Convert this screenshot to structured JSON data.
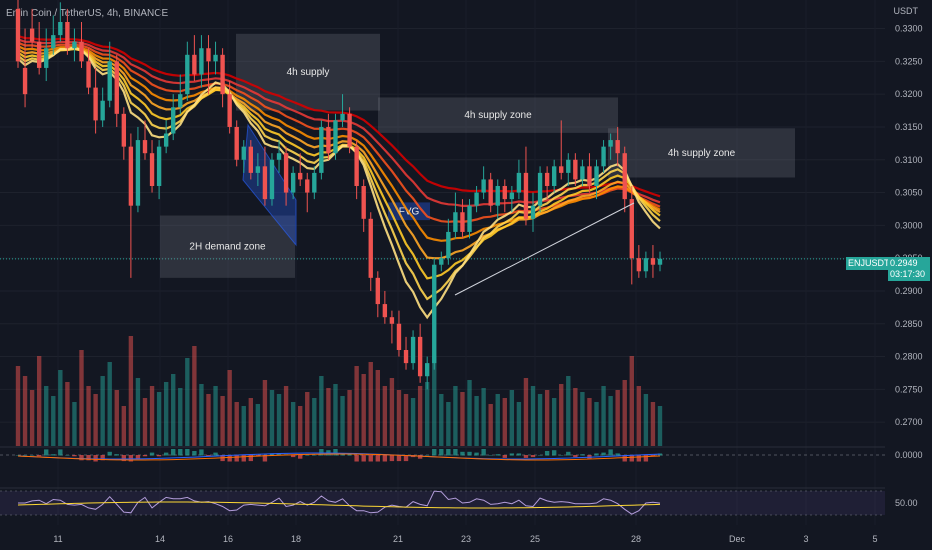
{
  "header": {
    "symbol_title": "Enjin Coin / TetherUS, 4h, BINANCE",
    "currency": "USDT"
  },
  "colors": {
    "background": "#131722",
    "up": "#26a69a",
    "down": "#ef5350",
    "zone": "#787b86",
    "fvg": "#2962ff",
    "ribbon": [
      "#d50000",
      "#e53935",
      "#f4511e",
      "#fb8c00",
      "#ffa726",
      "#ffca28",
      "#ffd54f",
      "#ffe082"
    ]
  },
  "price_tag": {
    "symbol": "ENJUSDT",
    "price": "0.2949",
    "countdown": "03:17:30"
  },
  "chart_data": {
    "type": "candlestick",
    "y_axis": {
      "ticks": [
        "0.3300",
        "0.3250",
        "0.3200",
        "0.3150",
        "0.3100",
        "0.3050",
        "0.3000",
        "0.2950",
        "0.2900",
        "0.2850",
        "0.2800",
        "0.2750",
        "0.2700"
      ],
      "range": [
        0.2685,
        0.331
      ]
    },
    "x_axis": {
      "ticks": [
        "11",
        "14",
        "16",
        "18",
        "21",
        "23",
        "25",
        "28",
        "Dec",
        "3",
        "5"
      ]
    },
    "candles": [
      [
        0.333,
        0.3345,
        0.325,
        0.324
      ],
      [
        0.324,
        0.33,
        0.32,
        0.318
      ],
      [
        0.33,
        0.333,
        0.328,
        0.327
      ],
      [
        0.328,
        0.331,
        0.324,
        0.323
      ],
      [
        0.324,
        0.33,
        0.327,
        0.322
      ],
      [
        0.327,
        0.332,
        0.329,
        0.326
      ],
      [
        0.329,
        0.334,
        0.331,
        0.328
      ],
      [
        0.331,
        0.333,
        0.327,
        0.326
      ],
      [
        0.327,
        0.33,
        0.328,
        0.325
      ],
      [
        0.328,
        0.331,
        0.325,
        0.324
      ],
      [
        0.325,
        0.327,
        0.321,
        0.32
      ],
      [
        0.321,
        0.324,
        0.316,
        0.314
      ],
      [
        0.316,
        0.321,
        0.319,
        0.315
      ],
      [
        0.319,
        0.328,
        0.325,
        0.318
      ],
      [
        0.325,
        0.326,
        0.317,
        0.315
      ],
      [
        0.317,
        0.318,
        0.312,
        0.31
      ],
      [
        0.312,
        0.314,
        0.303,
        0.292
      ],
      [
        0.303,
        0.315,
        0.313,
        0.302
      ],
      [
        0.313,
        0.316,
        0.311,
        0.31
      ],
      [
        0.311,
        0.313,
        0.306,
        0.305
      ],
      [
        0.306,
        0.313,
        0.312,
        0.304
      ],
      [
        0.312,
        0.316,
        0.314,
        0.311
      ],
      [
        0.314,
        0.32,
        0.318,
        0.313
      ],
      [
        0.318,
        0.323,
        0.32,
        0.317
      ],
      [
        0.32,
        0.328,
        0.326,
        0.319
      ],
      [
        0.326,
        0.329,
        0.323,
        0.322
      ],
      [
        0.323,
        0.329,
        0.327,
        0.321
      ],
      [
        0.327,
        0.329,
        0.325,
        0.32
      ],
      [
        0.325,
        0.328,
        0.326,
        0.323
      ],
      [
        0.326,
        0.327,
        0.32,
        0.318
      ],
      [
        0.32,
        0.322,
        0.315,
        0.314
      ],
      [
        0.315,
        0.316,
        0.31,
        0.309
      ],
      [
        0.31,
        0.313,
        0.312,
        0.308
      ],
      [
        0.312,
        0.313,
        0.308,
        0.307
      ],
      [
        0.308,
        0.311,
        0.309,
        0.306
      ],
      [
        0.309,
        0.312,
        0.304,
        0.303
      ],
      [
        0.304,
        0.311,
        0.31,
        0.303
      ],
      [
        0.31,
        0.313,
        0.311,
        0.308
      ],
      [
        0.311,
        0.312,
        0.305,
        0.303
      ],
      [
        0.305,
        0.309,
        0.308,
        0.304
      ],
      [
        0.308,
        0.311,
        0.307,
        0.306
      ],
      [
        0.307,
        0.308,
        0.305,
        0.302
      ],
      [
        0.305,
        0.309,
        0.308,
        0.304
      ],
      [
        0.308,
        0.316,
        0.315,
        0.307
      ],
      [
        0.315,
        0.317,
        0.311,
        0.31
      ],
      [
        0.311,
        0.317,
        0.316,
        0.31
      ],
      [
        0.316,
        0.32,
        0.317,
        0.315
      ],
      [
        0.317,
        0.318,
        0.312,
        0.311
      ],
      [
        0.312,
        0.313,
        0.306,
        0.304
      ],
      [
        0.306,
        0.307,
        0.301,
        0.299
      ],
      [
        0.301,
        0.302,
        0.292,
        0.29
      ],
      [
        0.292,
        0.293,
        0.288,
        0.286
      ],
      [
        0.288,
        0.29,
        0.286,
        0.285
      ],
      [
        0.286,
        0.287,
        0.285,
        0.282
      ],
      [
        0.285,
        0.287,
        0.281,
        0.28
      ],
      [
        0.281,
        0.283,
        0.279,
        0.278
      ],
      [
        0.279,
        0.284,
        0.283,
        0.278
      ],
      [
        0.283,
        0.285,
        0.277,
        0.276
      ],
      [
        0.277,
        0.28,
        0.279,
        0.275
      ],
      [
        0.279,
        0.295,
        0.294,
        0.278
      ],
      [
        0.294,
        0.296,
        0.295,
        0.293
      ],
      [
        0.295,
        0.301,
        0.299,
        0.294
      ],
      [
        0.299,
        0.305,
        0.302,
        0.298
      ],
      [
        0.302,
        0.304,
        0.299,
        0.298
      ],
      [
        0.299,
        0.304,
        0.303,
        0.298
      ],
      [
        0.303,
        0.306,
        0.305,
        0.302
      ],
      [
        0.305,
        0.309,
        0.307,
        0.304
      ],
      [
        0.307,
        0.308,
        0.303,
        0.302
      ],
      [
        0.303,
        0.307,
        0.306,
        0.301
      ],
      [
        0.306,
        0.307,
        0.304,
        0.302
      ],
      [
        0.304,
        0.306,
        0.305,
        0.302
      ],
      [
        0.305,
        0.31,
        0.308,
        0.304
      ],
      [
        0.308,
        0.312,
        0.301,
        0.3
      ],
      [
        0.301,
        0.305,
        0.303,
        0.299
      ],
      [
        0.303,
        0.309,
        0.308,
        0.302
      ],
      [
        0.308,
        0.309,
        0.306,
        0.304
      ],
      [
        0.306,
        0.31,
        0.309,
        0.305
      ],
      [
        0.309,
        0.316,
        0.308,
        0.307
      ],
      [
        0.308,
        0.311,
        0.31,
        0.306
      ],
      [
        0.31,
        0.311,
        0.307,
        0.306
      ],
      [
        0.307,
        0.31,
        0.309,
        0.306
      ],
      [
        0.309,
        0.311,
        0.306,
        0.305
      ],
      [
        0.306,
        0.31,
        0.309,
        0.304
      ],
      [
        0.309,
        0.313,
        0.312,
        0.308
      ],
      [
        0.312,
        0.314,
        0.313,
        0.31
      ],
      [
        0.313,
        0.315,
        0.311,
        0.309
      ],
      [
        0.311,
        0.312,
        0.304,
        0.302
      ],
      [
        0.304,
        0.306,
        0.295,
        0.291
      ],
      [
        0.295,
        0.297,
        0.293,
        0.292
      ],
      [
        0.293,
        0.296,
        0.295,
        0.292
      ],
      [
        0.295,
        0.297,
        0.294,
        0.292
      ],
      [
        0.294,
        0.296,
        0.2949,
        0.293
      ]
    ],
    "volumes": [
      40,
      35,
      28,
      45,
      30,
      25,
      38,
      32,
      22,
      48,
      30,
      26,
      35,
      42,
      28,
      20,
      55,
      34,
      24,
      30,
      27,
      32,
      36,
      29,
      44,
      50,
      31,
      26,
      30,
      25,
      38,
      22,
      20,
      24,
      21,
      33,
      28,
      26,
      30,
      22,
      20,
      27,
      24,
      35,
      29,
      31,
      25,
      28,
      40,
      36,
      42,
      38,
      30,
      34,
      28,
      26,
      24,
      30,
      32,
      45,
      26,
      22,
      30,
      27,
      33,
      25,
      29,
      21,
      26,
      24,
      28,
      22,
      34,
      30,
      26,
      28,
      24,
      31,
      35,
      29,
      27,
      24,
      22,
      30,
      25,
      28,
      33,
      45,
      30,
      26,
      22,
      20
    ],
    "zones": [
      {
        "label": "4h supply",
        "price_top": 0.3292,
        "price_bottom": 0.3175
      },
      {
        "label": "4h supply zone",
        "price_top": 0.3195,
        "price_bottom": 0.3141
      },
      {
        "label": "4h supply zone",
        "price_top": 0.3148,
        "price_bottom": 0.3073
      },
      {
        "label": "2H demand zone",
        "price_top": 0.3015,
        "price_bottom": 0.292
      },
      {
        "label": "FVG",
        "price_top": 0.3035,
        "price_bottom": 0.3008
      }
    ],
    "macd": {
      "zero_label": "0.0000"
    },
    "rsi": {
      "level_label": "50.00"
    }
  }
}
